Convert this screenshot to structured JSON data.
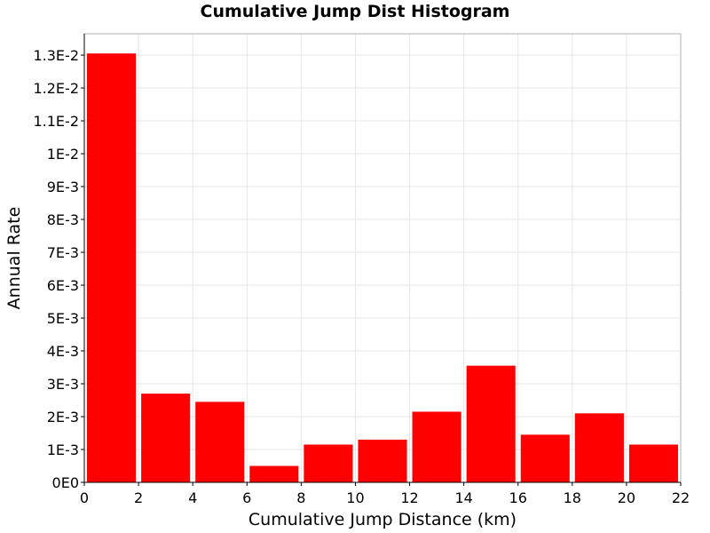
{
  "chart_data": {
    "type": "bar",
    "title": "Cumulative Jump Dist Histogram",
    "xlabel": "Cumulative Jump Distance (km)",
    "ylabel": "Annual Rate",
    "xlim": [
      0,
      22
    ],
    "ylim": [
      0,
      0.01365
    ],
    "grid": true,
    "bar_color": "#ff0000",
    "bins": [
      {
        "x0": 0,
        "x1": 2,
        "value": 0.01305
      },
      {
        "x0": 2,
        "x1": 4,
        "value": 0.0027
      },
      {
        "x0": 4,
        "x1": 6,
        "value": 0.00245
      },
      {
        "x0": 6,
        "x1": 8,
        "value": 0.0005
      },
      {
        "x0": 8,
        "x1": 10,
        "value": 0.00115
      },
      {
        "x0": 10,
        "x1": 12,
        "value": 0.0013
      },
      {
        "x0": 12,
        "x1": 14,
        "value": 0.00215
      },
      {
        "x0": 14,
        "x1": 16,
        "value": 0.00355
      },
      {
        "x0": 16,
        "x1": 18,
        "value": 0.00145
      },
      {
        "x0": 18,
        "x1": 20,
        "value": 0.0021
      },
      {
        "x0": 20,
        "x1": 22,
        "value": 0.00115
      }
    ],
    "x_ticks": [
      {
        "value": 0,
        "label": "0"
      },
      {
        "value": 2,
        "label": "2"
      },
      {
        "value": 4,
        "label": "4"
      },
      {
        "value": 6,
        "label": "6"
      },
      {
        "value": 8,
        "label": "8"
      },
      {
        "value": 10,
        "label": "10"
      },
      {
        "value": 12,
        "label": "12"
      },
      {
        "value": 14,
        "label": "14"
      },
      {
        "value": 16,
        "label": "16"
      },
      {
        "value": 18,
        "label": "18"
      },
      {
        "value": 20,
        "label": "20"
      },
      {
        "value": 22,
        "label": "22"
      }
    ],
    "y_ticks": [
      {
        "value": 0,
        "label": "0E0"
      },
      {
        "value": 0.001,
        "label": "1E-3"
      },
      {
        "value": 0.002,
        "label": "2E-3"
      },
      {
        "value": 0.003,
        "label": "3E-3"
      },
      {
        "value": 0.004,
        "label": "4E-3"
      },
      {
        "value": 0.005,
        "label": "5E-3"
      },
      {
        "value": 0.006,
        "label": "6E-3"
      },
      {
        "value": 0.007,
        "label": "7E-3"
      },
      {
        "value": 0.008,
        "label": "8E-3"
      },
      {
        "value": 0.009,
        "label": "9E-3"
      },
      {
        "value": 0.01,
        "label": "1E-2"
      },
      {
        "value": 0.011,
        "label": "1.1E-2"
      },
      {
        "value": 0.012,
        "label": "1.2E-2"
      },
      {
        "value": 0.013,
        "label": "1.3E-2"
      }
    ]
  }
}
